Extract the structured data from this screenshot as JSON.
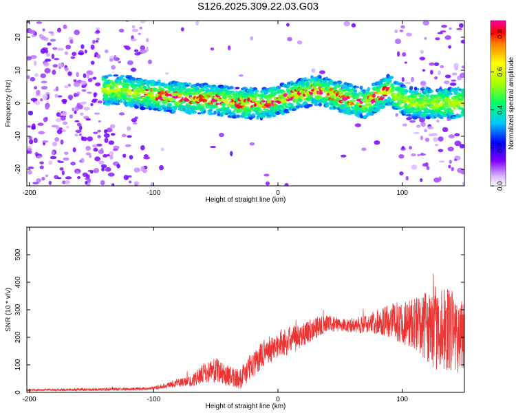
{
  "title": "S126.2025.309.22.03.G03",
  "chart_data": [
    {
      "type": "heatmap",
      "title": "S126.2025.309.22.03.G03",
      "xlabel": "Height of straight line (km)",
      "ylabel": "Frequency (Hz)",
      "xlim": [
        -202,
        150
      ],
      "ylim": [
        -25,
        25
      ],
      "xticks": [
        -200,
        -100,
        0,
        100
      ],
      "yticks": [
        -20,
        -10,
        0,
        10,
        20
      ],
      "colorbar": {
        "label": "Normalized spectral amplitude",
        "range": [
          0,
          0.87
        ],
        "ticks": [
          0.0,
          0.2,
          0.4,
          0.6,
          0.8
        ]
      },
      "ridge": {
        "description": "high-amplitude band near 0 Hz",
        "x": [
          -130,
          -110,
          -90,
          -70,
          -50,
          -30,
          -10,
          0,
          10,
          20,
          30,
          40,
          50,
          60,
          70,
          80,
          90,
          100,
          110
        ],
        "y": [
          4,
          3,
          2,
          1.5,
          1,
          0,
          0,
          1,
          2,
          3,
          4,
          3,
          2,
          1,
          0,
          2,
          4,
          1,
          0
        ]
      }
    },
    {
      "type": "line",
      "xlabel": "Height of straight line (km)",
      "ylabel": "SNR (10 * v/v)",
      "xlim": [
        -202,
        150
      ],
      "ylim": [
        0,
        600
      ],
      "xticks": [
        -200,
        -100,
        0,
        100
      ],
      "yticks": [
        0,
        100,
        200,
        300,
        400,
        500
      ],
      "series": [
        {
          "name": "SNR",
          "color": "#ee3333",
          "x": [
            -200,
            -180,
            -160,
            -140,
            -120,
            -100,
            -90,
            -80,
            -70,
            -60,
            -50,
            -40,
            -30,
            -20,
            -10,
            0,
            10,
            20,
            30,
            40,
            50,
            60,
            70,
            80,
            90,
            100,
            110,
            120,
            130,
            140,
            150
          ],
          "y": [
            8,
            9,
            10,
            11,
            12,
            15,
            25,
            35,
            40,
            70,
            80,
            60,
            50,
            100,
            150,
            170,
            190,
            210,
            235,
            250,
            245,
            240,
            250,
            255,
            260,
            255,
            250,
            240,
            230,
            220,
            210
          ],
          "spread": [
            4,
            4,
            5,
            5,
            5,
            6,
            10,
            15,
            20,
            35,
            45,
            40,
            40,
            45,
            50,
            50,
            50,
            45,
            40,
            30,
            25,
            25,
            35,
            45,
            60,
            80,
            100,
            130,
            160,
            150,
            140
          ]
        }
      ]
    }
  ]
}
